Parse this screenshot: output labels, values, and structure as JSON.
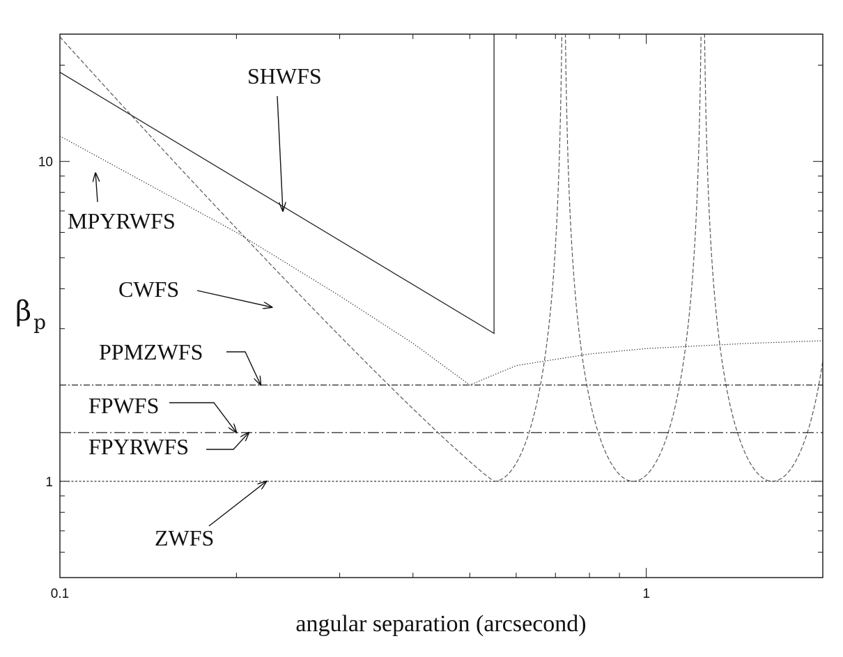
{
  "chart_data": {
    "type": "line",
    "xlabel": "angular separation (arcsecond)",
    "ylabel": "β",
    "ylabel_subscript": "p",
    "xscale": "log",
    "yscale": "log",
    "xlim": [
      0.1,
      2.0
    ],
    "ylim": [
      0.5,
      25
    ],
    "xticklabels": [
      {
        "value": 0.1,
        "label": "0.1"
      },
      {
        "value": 1,
        "label": "1"
      }
    ],
    "yticklabels": [
      {
        "value": 1,
        "label": "1"
      },
      {
        "value": 10,
        "label": "10"
      }
    ],
    "grid": false,
    "legend": "none",
    "series": [
      {
        "name": "SHWFS",
        "style": "solid",
        "x": [
          0.1,
          0.55,
          0.55,
          0.55
        ],
        "y": [
          19.0,
          2.9,
          2.9,
          25
        ]
      },
      {
        "name": "MPYRWFS",
        "style": "dotted",
        "x": [
          0.1,
          0.2,
          0.3,
          0.4,
          0.5,
          0.6,
          0.8,
          1.0,
          1.5,
          2.0
        ],
        "y": [
          12.0,
          6.0,
          3.8,
          2.7,
          2.0,
          2.3,
          2.5,
          2.6,
          2.7,
          2.75
        ]
      },
      {
        "name": "CWFS",
        "style": "dashed",
        "x_min": 0.55,
        "x_period": 0.4,
        "y_min": 1.0,
        "y_at_xmin": 24.5
      },
      {
        "name": "PPMZWFS",
        "style": "dash-dot",
        "x": [
          0.1,
          2.0
        ],
        "y": [
          2.0,
          2.0
        ]
      },
      {
        "name": "FPWFS",
        "style": "long-dash-dot",
        "x": [
          0.1,
          2.0
        ],
        "y": [
          1.42,
          1.42
        ]
      },
      {
        "name": "FPYRWFS",
        "style": "long-dash-dot",
        "x": [
          0.1,
          2.0
        ],
        "y": [
          1.42,
          1.42
        ]
      },
      {
        "name": "ZWFS",
        "style": "short-dash",
        "x": [
          0.1,
          2.0
        ],
        "y": [
          1.0,
          1.0
        ]
      }
    ],
    "annotations": [
      {
        "label": "SHWFS",
        "target_x": 0.24,
        "target_y": 7.0
      },
      {
        "label": "MPYRWFS",
        "target_x": 0.115,
        "target_y": 9.2
      },
      {
        "label": "CWFS",
        "target_x": 0.23,
        "target_y": 3.5
      },
      {
        "label": "PPMZWFS",
        "target_x": 0.22,
        "target_y": 2.0
      },
      {
        "label": "FPWFS",
        "target_x": 0.2,
        "target_y": 1.42
      },
      {
        "label": "FPYRWFS",
        "target_x": 0.21,
        "target_y": 1.42
      },
      {
        "label": "ZWFS",
        "target_x": 0.225,
        "target_y": 1.0
      }
    ]
  }
}
